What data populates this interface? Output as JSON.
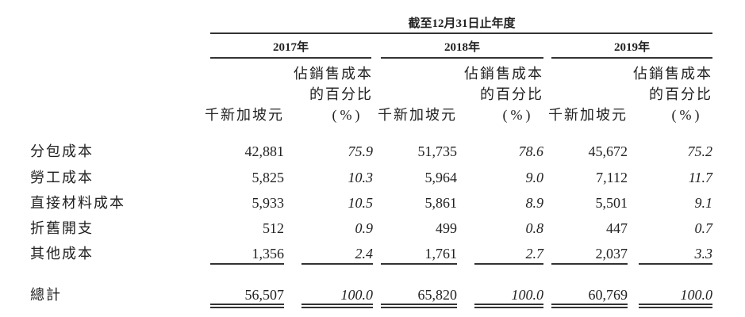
{
  "header": {
    "title": "截至12月31日止年度",
    "years": [
      "2017年",
      "2018年",
      "2019年"
    ],
    "unit_label": "千新加坡元",
    "percent_label": [
      "佔銷售成本",
      "的百分比",
      "(%)"
    ]
  },
  "table": {
    "rows": [
      [
        "分包成本",
        "42,881",
        "75.9",
        "51,735",
        "78.6",
        "45,672",
        "75.2"
      ],
      [
        "勞工成本",
        "5,825",
        "10.3",
        "5,964",
        "9.0",
        "7,112",
        "11.7"
      ],
      [
        "直接材料成本",
        "5,933",
        "10.5",
        "5,861",
        "8.9",
        "5,501",
        "9.1"
      ],
      [
        "折舊開支",
        "512",
        "0.9",
        "499",
        "0.8",
        "447",
        "0.7"
      ],
      [
        "其他成本",
        "1,356",
        "2.4",
        "1,761",
        "2.7",
        "2,037",
        "3.3"
      ]
    ],
    "total": [
      "總計",
      "56,507",
      "100.0",
      "65,820",
      "100.0",
      "60,769",
      "100.0"
    ]
  }
}
